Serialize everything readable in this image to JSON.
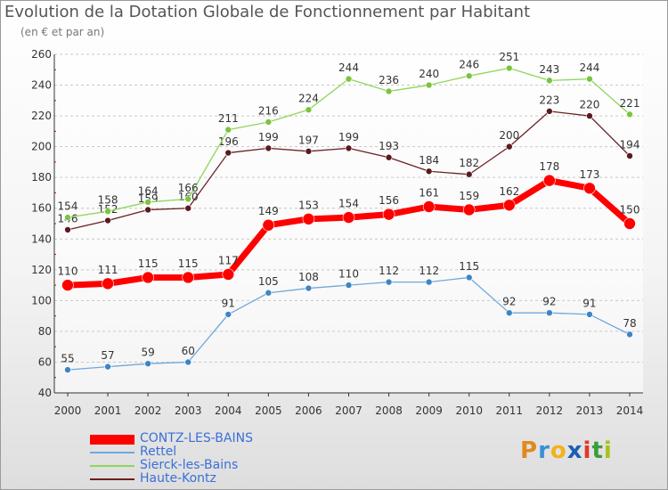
{
  "header": {
    "title": "Evolution de la Dotation Globale de Fonctionnement par Habitant",
    "subtitle": "(en € et par an)"
  },
  "logo": {
    "letters": [
      "P",
      "r",
      "o",
      "x",
      "i",
      "t",
      "i"
    ],
    "colors": [
      "#e08a1e",
      "#3b8fd6",
      "#f2b21b",
      "#1a5fb4",
      "#e0382b",
      "#3a9e3a",
      "#a8c21e"
    ]
  },
  "chart_data": {
    "type": "line",
    "x": [
      "2000",
      "2001",
      "2002",
      "2003",
      "2004",
      "2005",
      "2006",
      "2007",
      "2008",
      "2009",
      "2010",
      "2011",
      "2012",
      "2013",
      "2014"
    ],
    "ylim": [
      40,
      260
    ],
    "yticks": [
      40,
      60,
      80,
      100,
      120,
      140,
      160,
      180,
      200,
      220,
      240,
      260
    ],
    "grid": "horizontal dashed",
    "legend_position": "bottom-left",
    "series": [
      {
        "name": "Haute-Kontz",
        "color": "#6b1f24",
        "marker": "#5a1a1e",
        "width": 1.3,
        "radius": 3.5,
        "label_above": true,
        "values": [
          146,
          152,
          159,
          160,
          196,
          199,
          197,
          199,
          193,
          184,
          182,
          200,
          223,
          220,
          194
        ]
      },
      {
        "name": "Sierck-les-Bains",
        "color": "#8ed65a",
        "marker": "#7ac43f",
        "width": 1.3,
        "radius": 3.5,
        "label_above": true,
        "values": [
          154,
          158,
          164,
          166,
          211,
          216,
          224,
          244,
          236,
          240,
          246,
          251,
          243,
          244,
          221
        ]
      },
      {
        "name": "Rettel",
        "color": "#6fa8dc",
        "marker": "#3d85c6",
        "width": 1.3,
        "radius": 3.5,
        "label_above": true,
        "values": [
          55,
          57,
          59,
          60,
          91,
          105,
          108,
          110,
          112,
          112,
          115,
          92,
          92,
          91,
          78
        ]
      },
      {
        "name": "CONTZ-LES-BAINS",
        "color": "#ff0000",
        "marker": "#ff0000",
        "width": 7,
        "radius": 6.5,
        "label_above": true,
        "values": [
          110,
          111,
          115,
          115,
          117,
          149,
          153,
          154,
          156,
          161,
          159,
          162,
          178,
          173,
          150
        ]
      }
    ],
    "legend_order": [
      "CONTZ-LES-BAINS",
      "Rettel",
      "Sierck-les-Bains",
      "Haute-Kontz"
    ]
  }
}
